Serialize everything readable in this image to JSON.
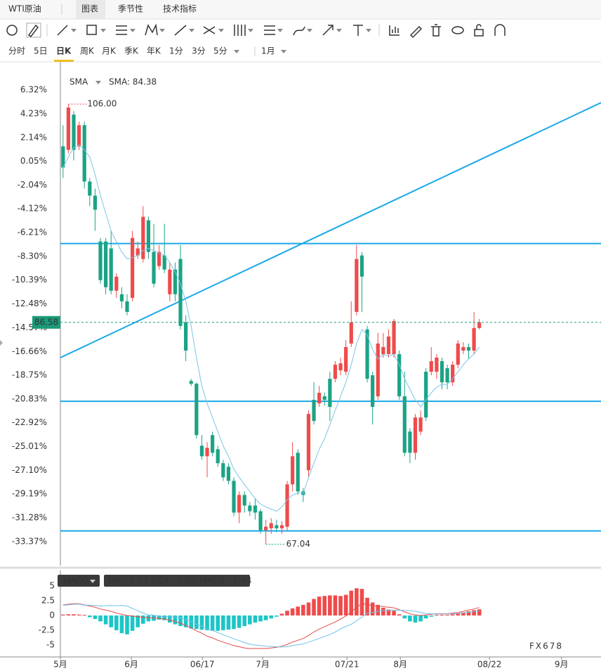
{
  "header": {
    "title": "WTI原油",
    "tabs": [
      "图表",
      "季节性",
      "技术指标"
    ],
    "active_tab": 0
  },
  "timeframes": [
    "分时",
    "5日",
    "日K",
    "周K",
    "月K",
    "季K",
    "年K",
    "1分",
    "3分",
    "5分"
  ],
  "active_timeframe": 2,
  "range_select": "1月",
  "watermark": "FX678",
  "chart_data": [
    {
      "type": "candlestick",
      "legend": {
        "name": "SMA",
        "label": "SMA: 84.38"
      },
      "up_color": "#ee4b4b",
      "down_color": "#1aa385",
      "xlim": [
        -0.5,
        100.8
      ],
      "ylim": [
        -35.48,
        8.8
      ],
      "yticks": [
        {
          "value": 6.32,
          "label": "6.32%"
        },
        {
          "value": 4.23,
          "label": "4.23%"
        },
        {
          "value": 2.14,
          "label": "2.14%"
        },
        {
          "value": 0.05,
          "label": "0.05%"
        },
        {
          "value": -2.04,
          "label": "-2.04%"
        },
        {
          "value": -4.12,
          "label": "-4.12%"
        },
        {
          "value": -6.21,
          "label": "-6.21%"
        },
        {
          "value": -8.3,
          "label": "-8.30%"
        },
        {
          "value": -10.39,
          "label": "-10.39%"
        },
        {
          "value": -12.48,
          "label": "-12.48%"
        },
        {
          "value": -14.57,
          "label": "-14.57%"
        },
        {
          "value": -16.66,
          "label": "-16.66%"
        },
        {
          "value": -18.75,
          "label": "-18.75%"
        },
        {
          "value": -20.83,
          "label": "-20.83%"
        },
        {
          "value": -22.92,
          "label": "-22.92%"
        },
        {
          "value": -25.01,
          "label": "-25.01%"
        },
        {
          "value": -27.1,
          "label": "-27.10%"
        },
        {
          "value": -29.19,
          "label": "-29.19%"
        },
        {
          "value": -31.28,
          "label": "-31.28%"
        },
        {
          "value": -33.37,
          "label": "-33.37%"
        }
      ],
      "open": [
        1.37,
        1.06,
        4.16,
        1.37,
        3.23,
        -1.72,
        -2.96,
        -6.99,
        -6.99,
        -7.6,
        -11.32,
        -11.63,
        -12.25,
        -11.94,
        -8.22,
        -8.53,
        -5.13,
        -7.91,
        -9.15,
        -8.22,
        -11.63,
        -9.46,
        -8.53,
        -14.1,
        -19.25,
        -19.5,
        -24.94,
        -25.87,
        -24.01,
        -25.25,
        -26.48,
        -26.79,
        -28.03,
        -30.82,
        -29.27,
        -30.2,
        -30.2,
        -30.7,
        -32.37,
        -32.2,
        -31.93,
        -32.2,
        -32.06,
        -28.34,
        -25.56,
        -28.96,
        -27.1,
        -20.91,
        -21.22,
        -20.6,
        -19.06,
        -19.06,
        -18.32,
        -18.44,
        -15.96,
        -13.18,
        -8.22,
        -14.72,
        -18.75,
        -20.6,
        -16.89,
        -16.89,
        -16.89,
        -16.89,
        -20.6,
        -23.7,
        -25.56,
        -23.7,
        -18.44,
        -18.44,
        -18.44,
        -17.51,
        -18.13,
        -19.37,
        -17.82,
        -16.58,
        -16.27,
        -16.58,
        -14.6
      ],
      "high": [
        3.23,
        5.09,
        4.47,
        3.54,
        3.54,
        -1.41,
        -2.34,
        -6.68,
        -6.68,
        -6.06,
        -9.77,
        -11.01,
        -11.63,
        -6.06,
        -6.99,
        -3.89,
        -4.82,
        -5.44,
        -7.3,
        -5.44,
        -8.84,
        -8.84,
        -7.3,
        -13.49,
        -19.06,
        -19.37,
        -24.01,
        -24.63,
        -23.7,
        -24.94,
        -26.18,
        -26.48,
        -27.72,
        -28.96,
        -28.96,
        -29.89,
        -29.58,
        -30.51,
        -31.44,
        -31.3,
        -31.44,
        -31.56,
        -28.03,
        -24.63,
        -25.25,
        -28.65,
        -21.84,
        -19.37,
        -19.68,
        -20.29,
        -18.44,
        -17.51,
        -17.2,
        -15.65,
        -12.25,
        -7.3,
        -7.91,
        -14.41,
        -18.44,
        -15.03,
        -15.03,
        -14.72,
        -13.8,
        -16.58,
        -18.44,
        -23.39,
        -22.15,
        -21.84,
        -18.13,
        -16.27,
        -16.89,
        -17.2,
        -17.82,
        -17.51,
        -15.65,
        -15.84,
        -15.96,
        -13.18,
        -13.8
      ],
      "low": [
        -1.41,
        0.75,
        0.13,
        1.06,
        -2.34,
        -3.89,
        -6.06,
        -10.7,
        -11.63,
        -11.63,
        -11.94,
        -12.87,
        -13.49,
        -12.25,
        -8.53,
        -8.84,
        -8.53,
        -11.01,
        -9.46,
        -9.77,
        -12.25,
        -12.25,
        -14.72,
        -17.51,
        -19.68,
        -24.32,
        -26.18,
        -27.72,
        -25.87,
        -26.79,
        -28.03,
        -28.34,
        -31.13,
        -31.75,
        -30.82,
        -31.13,
        -31.44,
        -32.68,
        -33.6,
        -32.68,
        -32.55,
        -32.68,
        -32.37,
        -28.96,
        -29.27,
        -29.89,
        -27.72,
        -23.08,
        -21.53,
        -21.41,
        -22.77,
        -19.37,
        -18.75,
        -18.75,
        -16.27,
        -13.49,
        -13.18,
        -19.37,
        -23.08,
        -20.91,
        -17.2,
        -17.2,
        -17.2,
        -20.91,
        -25.87,
        -26.48,
        -26.18,
        -24.01,
        -22.77,
        -18.75,
        -19.06,
        -19.98,
        -19.98,
        -19.68,
        -18.13,
        -16.89,
        -17.32,
        -16.89,
        -14.72
      ],
      "close": [
        -0.49,
        4.78,
        1.06,
        3.23,
        -1.72,
        -2.96,
        -4.2,
        -10.39,
        -11.01,
        -11.32,
        -10.08,
        -12.25,
        -13.18,
        -6.68,
        -7.6,
        -4.82,
        -7.91,
        -10.7,
        -7.91,
        -9.46,
        -9.46,
        -11.63,
        -14.41,
        -16.58,
        -19.5,
        -24.01,
        -25.87,
        -25.13,
        -25.56,
        -26.48,
        -27.72,
        -28.03,
        -30.82,
        -29.27,
        -30.2,
        -30.7,
        -30.82,
        -32.37,
        -32.06,
        -31.75,
        -32.2,
        -31.93,
        -28.34,
        -25.87,
        -28.96,
        -29.27,
        -22.15,
        -22.77,
        -20.29,
        -20.91,
        -21.53,
        -17.82,
        -17.7,
        -16.27,
        -14.1,
        -8.53,
        -10.08,
        -19.06,
        -21.53,
        -15.96,
        -16.27,
        -15.34,
        -13.98,
        -20.6,
        -25.56,
        -25.56,
        -22.46,
        -22.46,
        -22.46,
        -17.51,
        -17.2,
        -19.37,
        -19.37,
        -17.82,
        -15.96,
        -16.27,
        -16.58,
        -14.6,
        -14.1
      ],
      "sma": {
        "color": "#7cc4e6",
        "values": [
          -0.49,
          0.44,
          1.25,
          1.5,
          1.06,
          0.44,
          -1.11,
          -2.96,
          -4.51,
          -6.06,
          -6.99,
          -7.91,
          -8.53,
          -8.41,
          -8.22,
          -7.79,
          -7.6,
          -7.79,
          -8.04,
          -8.22,
          -8.84,
          -9.65,
          -10.7,
          -12.25,
          -14.41,
          -17.2,
          -19.68,
          -21.22,
          -22.46,
          -23.7,
          -24.94,
          -25.87,
          -26.98,
          -27.72,
          -28.34,
          -28.96,
          -29.58,
          -30.07,
          -30.32,
          -30.51,
          -30.7,
          -30.32,
          -29.7,
          -29.27,
          -29.08,
          -29.15,
          -27.72,
          -26.48,
          -25.25,
          -24.32,
          -23.08,
          -21.84,
          -20.6,
          -19.37,
          -17.82,
          -15.96,
          -14.72,
          -15.22,
          -16.46,
          -17.32,
          -16.89,
          -17.08,
          -16.89,
          -17.82,
          -19.06,
          -19.98,
          -20.91,
          -21.53,
          -20.91,
          -20.29,
          -19.8,
          -19.55,
          -19.55,
          -19.06,
          -18.44,
          -17.82,
          -17.32,
          -16.89,
          -16.27
        ]
      },
      "drawing_color": "#1aa8e8",
      "hlines": [
        -7.17,
        -21.04,
        -32.43
      ],
      "trendline": {
        "x": [
          -0.5,
          100.8
        ],
        "y": [
          -17.2,
          5.21
        ]
      },
      "high_label": "106.00",
      "low_label": "67.04",
      "last_label": "86.58",
      "last_color": "#1a9a78"
    },
    {
      "type": "macd",
      "legend": "MACD",
      "labels": [
        "DIF : 1.34",
        "DEA : 0.82",
        "MACD : 1.04"
      ],
      "xlim": [
        -0.5,
        100.8
      ],
      "ylim": [
        -6.43,
        6.9
      ],
      "yticks": [
        5,
        2.5,
        0,
        -2.5,
        -5
      ],
      "xticks": [
        {
          "value": -0.5,
          "label": "5月"
        },
        {
          "value": 12.8,
          "label": "6月"
        },
        {
          "value": 26.1,
          "label": "06/17"
        },
        {
          "value": 37.4,
          "label": "7月"
        },
        {
          "value": 53.2,
          "label": "07/21"
        },
        {
          "value": 63.2,
          "label": "8月"
        },
        {
          "value": 79.9,
          "label": "08/22"
        },
        {
          "value": 93.4,
          "label": "9月"
        }
      ],
      "up_color": "#f04a4a",
      "down_color": "#1cc6c6",
      "histogram": [
        0.15,
        0.2,
        0.2,
        0.15,
        0.1,
        -0.3,
        -0.6,
        -1.0,
        -1.5,
        -2.0,
        -2.5,
        -3.0,
        -3.2,
        -2.6,
        -2.0,
        -1.4,
        -1.0,
        -0.9,
        -0.7,
        -0.8,
        -1.2,
        -1.5,
        -1.8,
        -2.0,
        -2.2,
        -2.3,
        -2.4,
        -2.5,
        -2.6,
        -2.6,
        -2.5,
        -2.4,
        -2.3,
        -2.1,
        -1.8,
        -1.5,
        -1.2,
        -1.0,
        -0.8,
        -0.5,
        -0.2,
        0.3,
        0.8,
        1.2,
        1.5,
        1.8,
        2.2,
        2.8,
        3.2,
        3.3,
        3.4,
        3.4,
        3.3,
        3.5,
        4.2,
        4.6,
        4.5,
        3.0,
        2.2,
        1.8,
        1.3,
        1.0,
        0.8,
        0.2,
        -0.5,
        -1.0,
        -1.2,
        -1.0,
        -0.5,
        -0.2,
        0.1,
        0.1,
        0.1,
        0.2,
        0.3,
        0.5,
        0.7,
        0.9,
        1.04
      ],
      "dif": {
        "color": "#e84a4a",
        "values": [
          1.8,
          1.9,
          2.0,
          2.0,
          1.8,
          1.6,
          1.4,
          1.1,
          0.9,
          0.7,
          0.4,
          0.2,
          0.0,
          -0.1,
          -0.2,
          -0.3,
          -0.4,
          -0.4,
          -0.5,
          -0.6,
          -0.8,
          -1.0,
          -1.3,
          -1.7,
          -2.1,
          -2.6,
          -3.0,
          -3.5,
          -3.8,
          -4.2,
          -4.5,
          -4.8,
          -5.1,
          -5.3,
          -5.5,
          -5.6,
          -5.6,
          -5.6,
          -5.6,
          -5.5,
          -5.4,
          -5.2,
          -4.9,
          -4.5,
          -4.2,
          -3.9,
          -3.4,
          -2.8,
          -2.3,
          -1.9,
          -1.5,
          -1.1,
          -0.6,
          -0.1,
          0.6,
          1.4,
          2.0,
          1.9,
          1.6,
          1.6,
          1.5,
          1.4,
          1.3,
          1.0,
          0.6,
          0.3,
          0.1,
          0.0,
          0.1,
          0.2,
          0.3,
          0.3,
          0.3,
          0.4,
          0.5,
          0.7,
          0.9,
          1.1,
          1.34
        ]
      },
      "dea": {
        "color": "#6ec1e8",
        "values": [
          1.73,
          1.8,
          1.9,
          1.93,
          1.75,
          1.75,
          1.7,
          1.6,
          1.65,
          1.7,
          1.65,
          1.7,
          1.6,
          1.2,
          0.8,
          0.4,
          0.1,
          0.05,
          -0.15,
          -0.2,
          -0.2,
          -0.25,
          -0.4,
          -0.7,
          -1.0,
          -1.45,
          -1.8,
          -2.25,
          -2.5,
          -2.9,
          -3.25,
          -3.6,
          -3.95,
          -4.25,
          -4.6,
          -4.85,
          -5.0,
          -5.1,
          -5.2,
          -5.25,
          -5.3,
          -5.35,
          -5.3,
          -5.1,
          -4.95,
          -4.8,
          -4.5,
          -4.2,
          -3.9,
          -3.55,
          -3.2,
          -2.8,
          -2.25,
          -1.85,
          -1.5,
          -0.9,
          -0.25,
          0.4,
          0.5,
          0.7,
          0.85,
          0.9,
          0.9,
          0.9,
          0.85,
          0.8,
          0.7,
          0.5,
          0.35,
          0.3,
          0.25,
          0.25,
          0.25,
          0.3,
          0.35,
          0.45,
          0.55,
          0.65,
          0.82
        ]
      }
    }
  ]
}
